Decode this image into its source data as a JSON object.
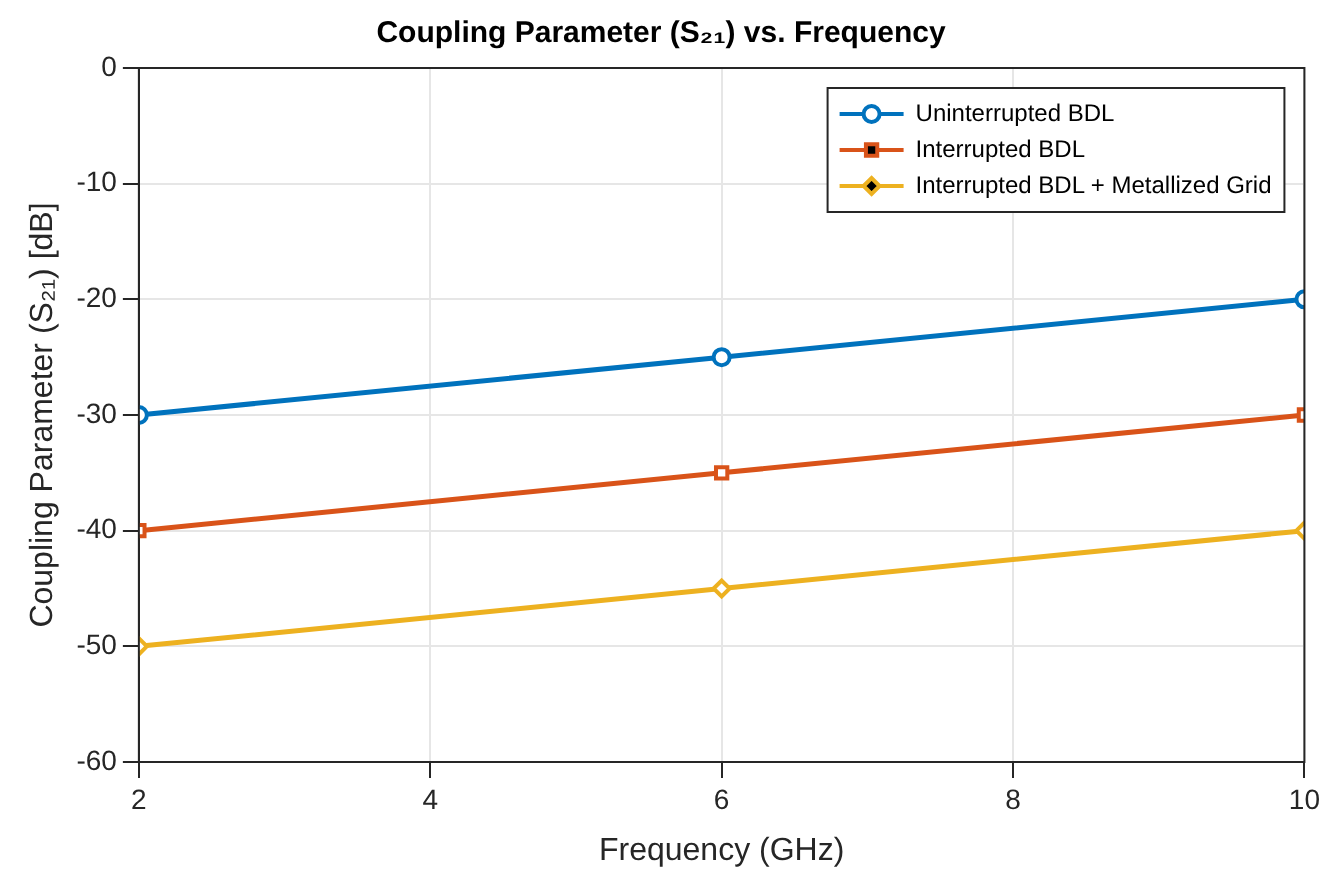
{
  "chart_data": {
    "type": "line",
    "title": "Coupling Parameter (S₂₁) vs. Frequency",
    "xlabel": "Frequency (GHz)",
    "ylabel": "Coupling Parameter (S₂₁) [dB]",
    "x": [
      2,
      6,
      10
    ],
    "series": [
      {
        "name": "Uninterrupted BDL",
        "color": "#0072bd",
        "marker": "circle",
        "values": [
          -30,
          -25,
          -20
        ]
      },
      {
        "name": "Interrupted BDL",
        "color": "#d95319",
        "marker": "square",
        "values": [
          -40,
          -35,
          -30
        ]
      },
      {
        "name": "Interrupted BDL + Metallized Grid",
        "color": "#edb120",
        "marker": "diamond",
        "values": [
          -50,
          -45,
          -40
        ]
      }
    ],
    "xlim": [
      2,
      10
    ],
    "xticks": [
      2,
      4,
      6,
      8,
      10
    ],
    "ylim": [
      -60,
      0
    ],
    "yticks": [
      -60,
      -50,
      -40,
      -30,
      -20,
      -10,
      0
    ],
    "grid": true,
    "legend": "top right",
    "line_style": "solid"
  }
}
